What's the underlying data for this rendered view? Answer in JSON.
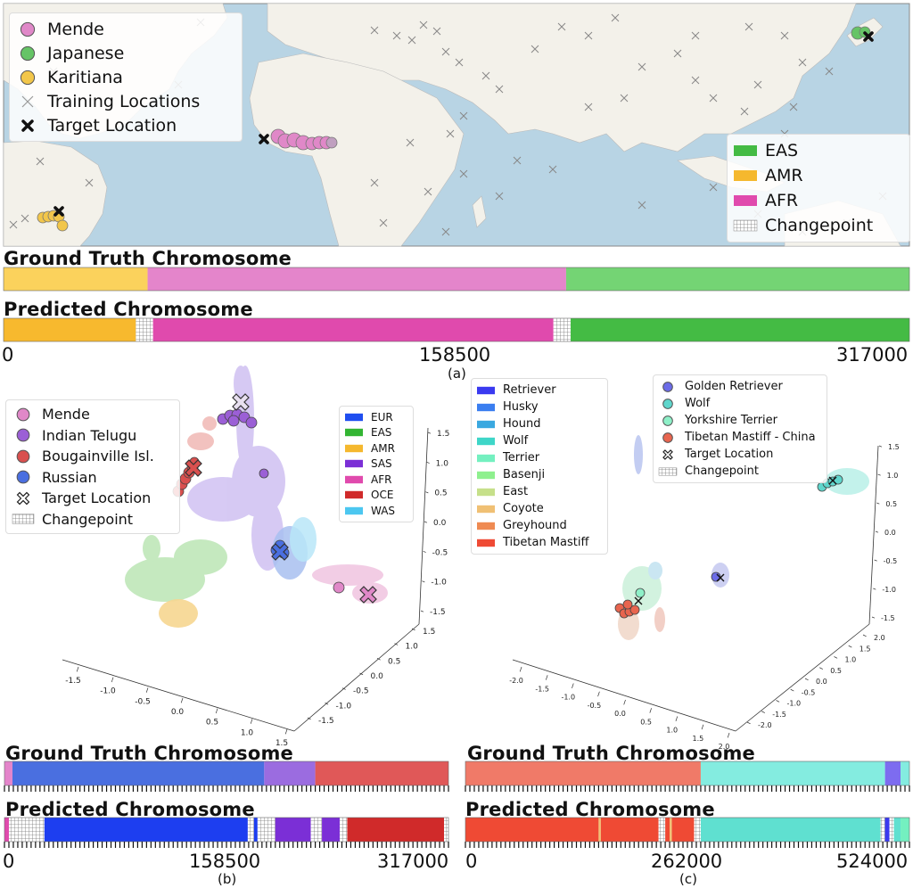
{
  "panel_a": {
    "label": "(a)",
    "map_legend": {
      "items": [
        {
          "text": "Mende",
          "color": "#e088c8",
          "marker": "circle"
        },
        {
          "text": "Japanese",
          "color": "#66c466",
          "marker": "circle"
        },
        {
          "text": "Karitiana",
          "color": "#f2c64a",
          "marker": "circle"
        },
        {
          "text": "Training Locations",
          "color": "#999999",
          "marker": "x-thin"
        },
        {
          "text": "Target Location",
          "color": "#111111",
          "marker": "x-bold"
        }
      ]
    },
    "superpop_legend": {
      "items": [
        {
          "text": "EAS",
          "color": "#44bb44",
          "marker": "patch"
        },
        {
          "text": "AMR",
          "color": "#f5b82e",
          "marker": "patch"
        },
        {
          "text": "AFR",
          "color": "#e04aad",
          "marker": "patch"
        },
        {
          "text": "Changepoint",
          "color": "#cccccc",
          "marker": "hatch"
        }
      ]
    },
    "ground_truth_title": "Ground Truth Chromosome",
    "predicted_title": "Predicted Chromosome",
    "ground_truth_segments": [
      {
        "from": 0,
        "to": 0.159,
        "color": "#fbd25c"
      },
      {
        "from": 0.159,
        "to": 0.621,
        "color": "#e485cb"
      },
      {
        "from": 0.621,
        "to": 1.0,
        "color": "#74d474"
      }
    ],
    "predicted_segments": [
      {
        "from": 0,
        "to": 0.146,
        "color": "#f7b92e"
      },
      {
        "from": 0.146,
        "to": 0.165,
        "color": "hatch"
      },
      {
        "from": 0.165,
        "to": 0.607,
        "color": "#e04aad"
      },
      {
        "from": 0.607,
        "to": 0.626,
        "color": "hatch"
      },
      {
        "from": 0.626,
        "to": 1.0,
        "color": "#44bb44"
      }
    ],
    "ticks": [
      "0",
      "158500",
      "317000"
    ]
  },
  "panel_b": {
    "label": "(b)",
    "legend": {
      "items": [
        {
          "text": "Mende",
          "color": "#e088c8",
          "marker": "circle"
        },
        {
          "text": "Indian Telugu",
          "color": "#9b5fd6",
          "marker": "circle"
        },
        {
          "text": "Bougainville Isl.",
          "color": "#d9504f",
          "marker": "circle"
        },
        {
          "text": "Russian",
          "color": "#4a6fe0",
          "marker": "circle"
        },
        {
          "text": "Target Location",
          "color": "#ffffff",
          "marker": "x-hollow"
        },
        {
          "text": "Changepoint",
          "color": "#cccccc",
          "marker": "hatch"
        }
      ]
    },
    "superpop_legend": {
      "items": [
        {
          "text": "EUR",
          "color": "#1f4ef0",
          "marker": "patch"
        },
        {
          "text": "EAS",
          "color": "#33b533",
          "marker": "patch"
        },
        {
          "text": "AMR",
          "color": "#f5b82e",
          "marker": "patch"
        },
        {
          "text": "SAS",
          "color": "#7b2fd6",
          "marker": "patch"
        },
        {
          "text": "AFR",
          "color": "#e04aad",
          "marker": "patch"
        },
        {
          "text": "OCE",
          "color": "#d02a2a",
          "marker": "patch"
        },
        {
          "text": "WAS",
          "color": "#4cc7f0",
          "marker": "patch"
        }
      ]
    },
    "axis_ticks_x": [
      "-1.5",
      "-1.0",
      "-0.5",
      "0.0",
      "0.5",
      "1.0",
      "1.5"
    ],
    "axis_ticks_y": [
      "-1.5",
      "-1.0",
      "-0.5",
      "0.0",
      "0.5",
      "1.0",
      "1.5"
    ],
    "axis_ticks_z": [
      "-1.5",
      "-1.0",
      "-0.5",
      "0.0",
      "0.5",
      "1.0",
      "1.5"
    ],
    "ground_truth_title": "Ground Truth Chromosome",
    "predicted_title": "Predicted Chromosome",
    "ground_truth_segments": [
      {
        "from": 0,
        "to": 0.018,
        "color": "#e485cb"
      },
      {
        "from": 0.018,
        "to": 0.585,
        "color": "#4a6fe0"
      },
      {
        "from": 0.585,
        "to": 0.7,
        "color": "#9b6ce0"
      },
      {
        "from": 0.7,
        "to": 1.0,
        "color": "#e05858"
      }
    ],
    "predicted_segments": [
      {
        "from": 0,
        "to": 0.01,
        "color": "#e04aad"
      },
      {
        "from": 0.01,
        "to": 0.09,
        "color": "hatch"
      },
      {
        "from": 0.09,
        "to": 0.548,
        "color": "#1d3ef0"
      },
      {
        "from": 0.548,
        "to": 0.562,
        "color": "hatch"
      },
      {
        "from": 0.562,
        "to": 0.57,
        "color": "#1d3ef0"
      },
      {
        "from": 0.57,
        "to": 0.61,
        "color": "hatch"
      },
      {
        "from": 0.61,
        "to": 0.69,
        "color": "#7b2fd6"
      },
      {
        "from": 0.69,
        "to": 0.715,
        "color": "hatch"
      },
      {
        "from": 0.715,
        "to": 0.755,
        "color": "#7b2fd6"
      },
      {
        "from": 0.755,
        "to": 0.772,
        "color": "hatch"
      },
      {
        "from": 0.772,
        "to": 0.99,
        "color": "#d02a2a"
      },
      {
        "from": 0.99,
        "to": 1.0,
        "color": "hatch"
      }
    ],
    "ticks": [
      "0",
      "158500",
      "317000"
    ]
  },
  "panel_c": {
    "label": "(c)",
    "breed_legend": {
      "items": [
        {
          "text": "Retriever",
          "color": "#3a3af0",
          "marker": "patch"
        },
        {
          "text": "Husky",
          "color": "#3a7ef0",
          "marker": "patch"
        },
        {
          "text": "Hound",
          "color": "#3aa8e0",
          "marker": "patch"
        },
        {
          "text": "Wolf",
          "color": "#3ed6c8",
          "marker": "patch"
        },
        {
          "text": "Terrier",
          "color": "#74f0c0",
          "marker": "patch"
        },
        {
          "text": "Basenji",
          "color": "#8ef08e",
          "marker": "patch"
        },
        {
          "text": "East",
          "color": "#c6e08a",
          "marker": "patch"
        },
        {
          "text": "Coyote",
          "color": "#f0c074",
          "marker": "patch"
        },
        {
          "text": "Greyhound",
          "color": "#ef8a52",
          "marker": "patch"
        },
        {
          "text": "Tibetan Mastiff",
          "color": "#ef4a34",
          "marker": "patch"
        }
      ]
    },
    "sample_legend": {
      "items": [
        {
          "text": "Golden Retriever",
          "color": "#6c6ce8",
          "marker": "circle"
        },
        {
          "text": "Wolf",
          "color": "#5fd6cc",
          "marker": "circle"
        },
        {
          "text": "Yorkshire Terrier",
          "color": "#8ef0c8",
          "marker": "circle"
        },
        {
          "text": "Tibetan Mastiff - China",
          "color": "#e8654f",
          "marker": "circle"
        },
        {
          "text": "Target Location",
          "color": "#ffffff",
          "marker": "x-hollow"
        },
        {
          "text": "Changepoint",
          "color": "#cccccc",
          "marker": "hatch"
        }
      ]
    },
    "axis_ticks_x": [
      "-2.0",
      "-1.5",
      "-1.0",
      "-0.5",
      "0.0",
      "0.5",
      "1.0",
      "1.5",
      "2.0"
    ],
    "axis_ticks_y": [
      "-2.0",
      "-1.5",
      "-1.0",
      "-0.5",
      "0.0",
      "0.5",
      "1.0",
      "1.5",
      "2.0"
    ],
    "axis_ticks_z": [
      "-1.5",
      "-1.0",
      "-0.5",
      "0.0",
      "0.5",
      "1.0",
      "1.5"
    ],
    "ground_truth_title": "Ground Truth Chromosome",
    "predicted_title": "Predicted Chromosome",
    "ground_truth_segments": [
      {
        "from": 0,
        "to": 0.53,
        "color": "#f07a68"
      },
      {
        "from": 0.53,
        "to": 0.945,
        "color": "#84ece0"
      },
      {
        "from": 0.945,
        "to": 0.98,
        "color": "#7d6cf0"
      },
      {
        "from": 0.98,
        "to": 1.0,
        "color": "#84ece0"
      }
    ],
    "predicted_segments": [
      {
        "from": 0,
        "to": 0.3,
        "color": "#ef4a34"
      },
      {
        "from": 0.3,
        "to": 0.305,
        "color": "#f0c074"
      },
      {
        "from": 0.305,
        "to": 0.435,
        "color": "#ef4a34"
      },
      {
        "from": 0.435,
        "to": 0.45,
        "color": "hatch"
      },
      {
        "from": 0.45,
        "to": 0.46,
        "color": "#ef4a34"
      },
      {
        "from": 0.46,
        "to": 0.465,
        "color": "#f0c074"
      },
      {
        "from": 0.465,
        "to": 0.515,
        "color": "#ef4a34"
      },
      {
        "from": 0.515,
        "to": 0.53,
        "color": "hatch"
      },
      {
        "from": 0.53,
        "to": 0.935,
        "color": "#5fe0d0"
      },
      {
        "from": 0.935,
        "to": 0.945,
        "color": "hatch"
      },
      {
        "from": 0.945,
        "to": 0.955,
        "color": "#3a3af0"
      },
      {
        "from": 0.955,
        "to": 0.965,
        "color": "hatch"
      },
      {
        "from": 0.965,
        "to": 0.98,
        "color": "#5fe0d0"
      },
      {
        "from": 0.98,
        "to": 1.0,
        "color": "#74f0c0"
      }
    ],
    "ticks": [
      "0",
      "262000",
      "524000"
    ]
  }
}
